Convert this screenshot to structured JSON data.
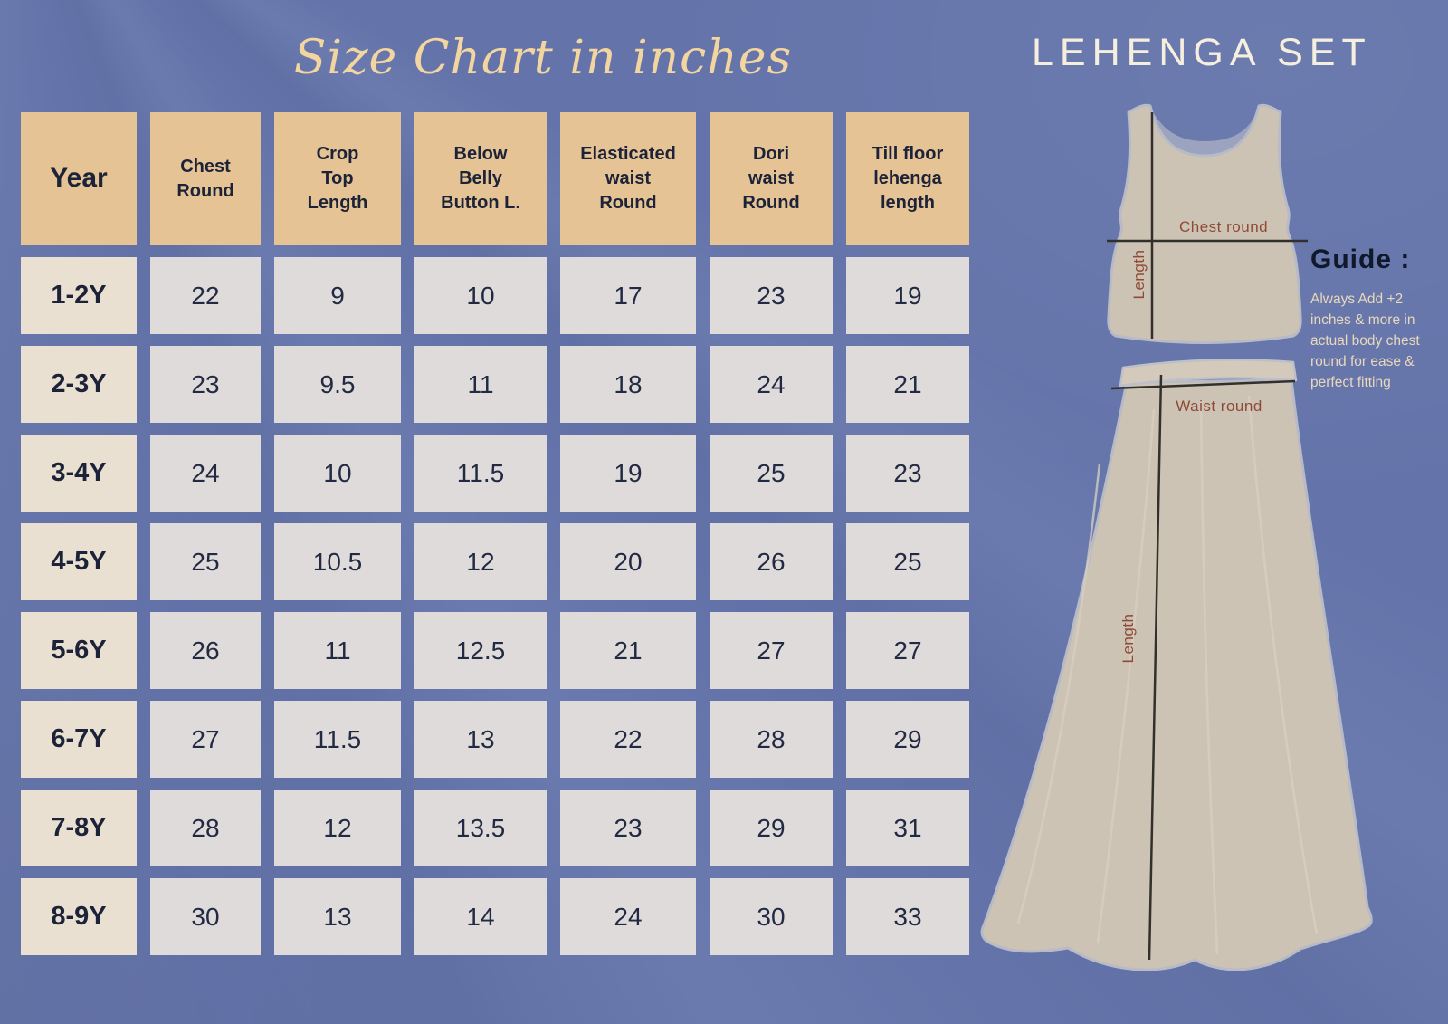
{
  "header": {
    "script_title": "Size Chart in inches",
    "product_title": "LEHENGA SET"
  },
  "chart_data": {
    "type": "table",
    "title": "Size Chart in inches",
    "columns": [
      "Year",
      "Chest\nRound",
      "Crop\nTop\nLength",
      "Below\nBelly\nButton L.",
      "Elasticated\nwaist\nRound",
      "Dori\nwaist\nRound",
      "Till floor\nlehenga\nlength"
    ],
    "rows": [
      [
        "1-2Y",
        "22",
        "9",
        "10",
        "17",
        "23",
        "19"
      ],
      [
        "2-3Y",
        "23",
        "9.5",
        "11",
        "18",
        "24",
        "21"
      ],
      [
        "3-4Y",
        "24",
        "10",
        "11.5",
        "19",
        "25",
        "23"
      ],
      [
        "4-5Y",
        "25",
        "10.5",
        "12",
        "20",
        "26",
        "25"
      ],
      [
        "5-6Y",
        "26",
        "11",
        "12.5",
        "21",
        "27",
        "27"
      ],
      [
        "6-7Y",
        "27",
        "11.5",
        "13",
        "22",
        "28",
        "29"
      ],
      [
        "7-8Y",
        "28",
        "12",
        "13.5",
        "23",
        "29",
        "31"
      ],
      [
        "8-9Y",
        "30",
        "13",
        "14",
        "24",
        "30",
        "33"
      ]
    ]
  },
  "guide": {
    "heading": "Guide :",
    "body": "Always Add +2 inches & more in actual body chest round for ease & perfect fitting"
  },
  "diagram": {
    "crop_top": {
      "chest_label": "Chest round",
      "length_label": "Length"
    },
    "skirt": {
      "waist_label": "Waist round",
      "length_label": "Length"
    }
  },
  "colors": {
    "background": "#6474aa",
    "header_cell": "#e5c394",
    "year_cell": "#e9e0d2",
    "value_cell": "#dfdbda",
    "dark_text": "#1c2338",
    "script_title": "#f3d5a0",
    "product_title": "#f6efde",
    "guide_body": "#e9d8ba",
    "garment_fill": "#cdc3b5",
    "garment_outline": "#b8bbc6",
    "measure_label": "#8e4a35",
    "measure_line": "#33302c"
  }
}
